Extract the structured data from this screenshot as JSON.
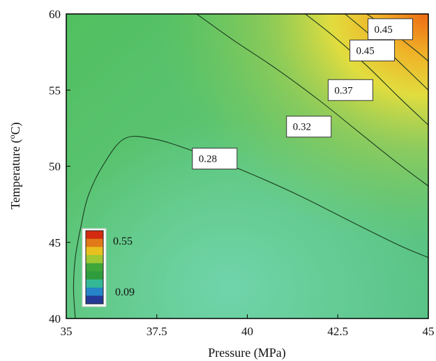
{
  "chart_data": {
    "type": "contour",
    "title": "",
    "xlabel": "Pressure (MPa)",
    "ylabel_main": "Temperature (",
    "ylabel_sup": "o",
    "ylabel_end": "C)",
    "xlim": [
      35,
      45
    ],
    "ylim": [
      40,
      60
    ],
    "x_ticks": [
      35,
      37.5,
      40,
      42.5,
      45
    ],
    "x_tick_labels": [
      "35",
      "37.5",
      "40",
      "42.5",
      "45"
    ],
    "y_ticks": [
      40,
      45,
      50,
      55,
      60
    ],
    "y_tick_labels": [
      "40",
      "45",
      "50",
      "55",
      "60"
    ],
    "contours": [
      {
        "level": 0.28,
        "label": "0.28",
        "label_at": [
          39.1,
          50.5
        ],
        "points": [
          [
            35.25,
            40
          ],
          [
            35.2,
            42
          ],
          [
            35.25,
            44
          ],
          [
            35.4,
            46
          ],
          [
            35.6,
            48
          ],
          [
            36.0,
            50
          ],
          [
            36.6,
            51.8
          ],
          [
            37.4,
            51.8
          ],
          [
            38.5,
            51.0
          ],
          [
            40.0,
            49.6
          ],
          [
            41.5,
            48.0
          ],
          [
            43.0,
            46.2
          ],
          [
            44.2,
            44.8
          ],
          [
            45,
            44.0
          ]
        ]
      },
      {
        "level": 0.32,
        "label": "0.32",
        "label_at": [
          41.7,
          52.6
        ],
        "points": [
          [
            38.6,
            60
          ],
          [
            39.6,
            58.3
          ],
          [
            40.8,
            56.4
          ],
          [
            42.0,
            54.3
          ],
          [
            43.1,
            52.2
          ],
          [
            44.1,
            50.3
          ],
          [
            45,
            48.7
          ]
        ]
      },
      {
        "level": 0.37,
        "label": "0.37",
        "label_at": [
          42.85,
          55.0
        ],
        "points": [
          [
            41.6,
            60
          ],
          [
            42.4,
            58.5
          ],
          [
            43.3,
            56.6
          ],
          [
            44.2,
            54.5
          ],
          [
            45,
            52.7
          ]
        ]
      },
      {
        "level": 0.45,
        "label": "0.45",
        "label_at": [
          43.45,
          57.6
        ],
        "points": [
          [
            42.7,
            60
          ],
          [
            43.5,
            58.4
          ],
          [
            44.3,
            56.6
          ],
          [
            45,
            55.0
          ]
        ]
      },
      {
        "level": 0.45,
        "label": "0.45",
        "label_at": [
          43.95,
          59.0
        ],
        "points": [
          [
            43.3,
            60
          ],
          [
            43.9,
            59.0
          ],
          [
            44.6,
            57.7
          ],
          [
            45,
            56.9
          ]
        ]
      }
    ],
    "colorbar": {
      "max_label": "0.55",
      "min_label": "0.09",
      "colors": [
        "#d42a10",
        "#e07a18",
        "#e8c020",
        "#9fc832",
        "#3fa63a",
        "#2e9c3c",
        "#34b896",
        "#2585c8",
        "#243a96"
      ]
    },
    "field_colors": {
      "low": "#6fd3a8",
      "mid": "#55c16a",
      "upper": "#8fcb44",
      "high": "#e6dc3a",
      "peak": "#ee8a1a"
    },
    "grid": false,
    "legend": "colorbar bottom-left inside plot"
  }
}
